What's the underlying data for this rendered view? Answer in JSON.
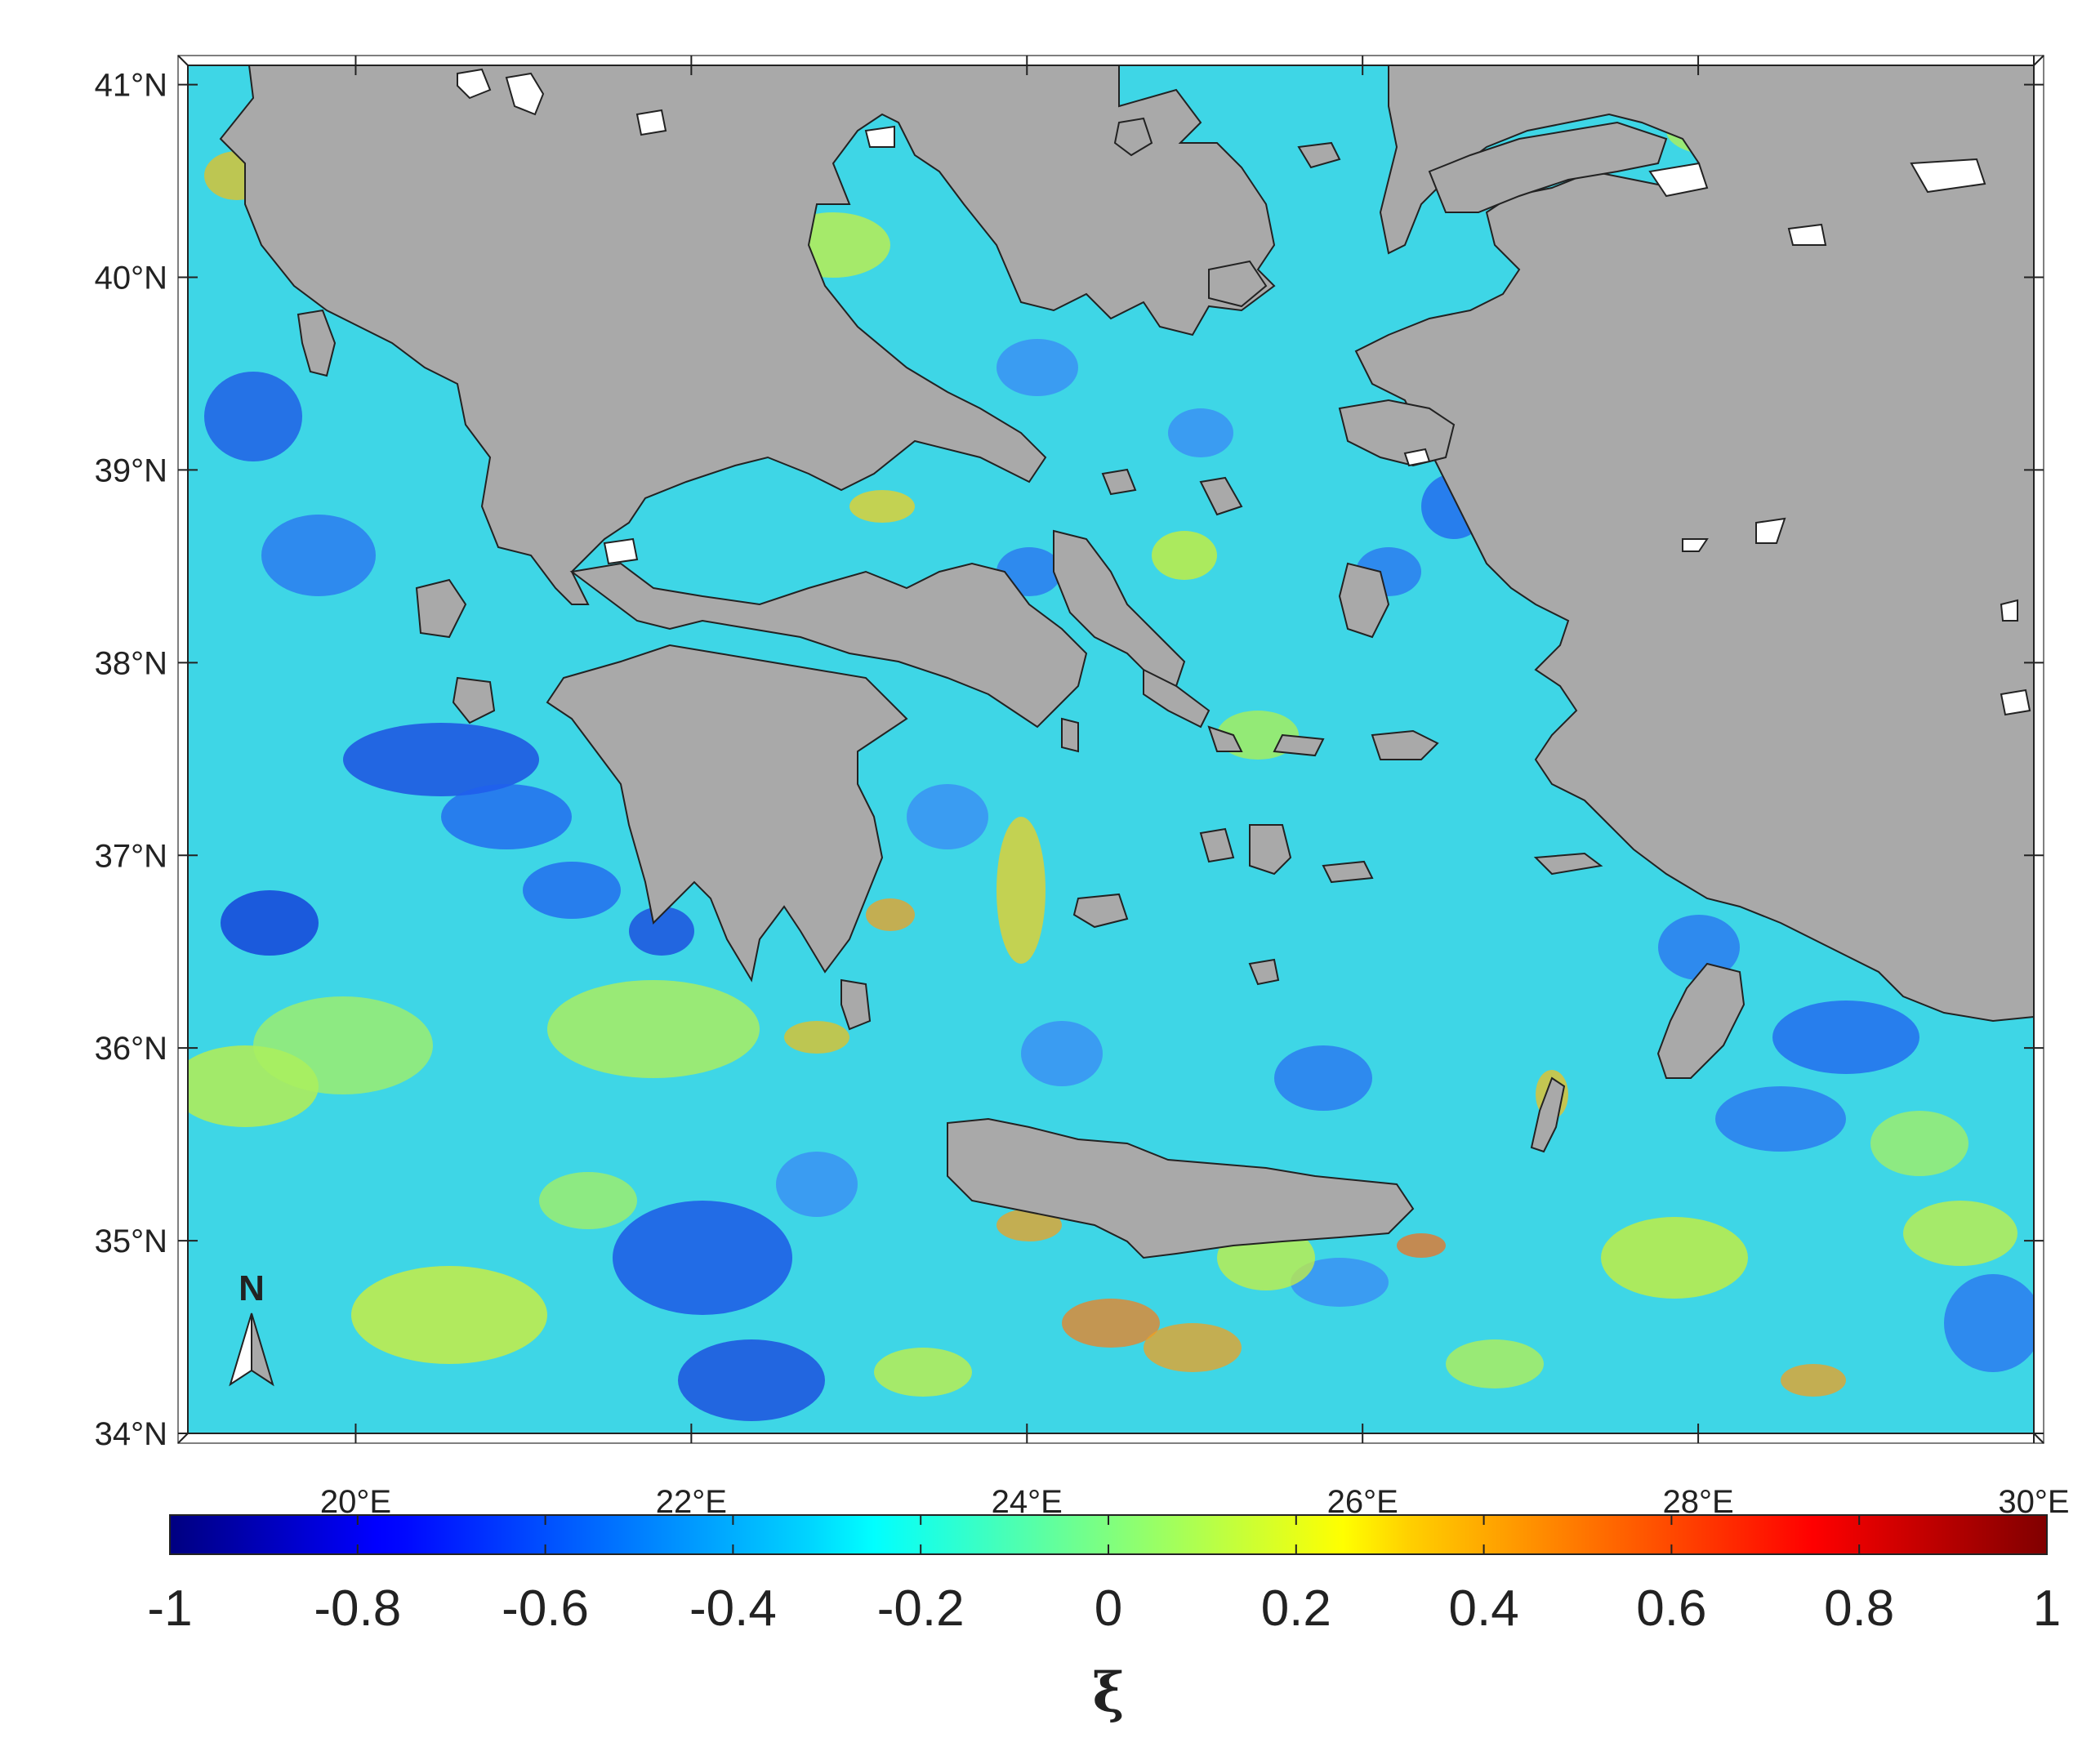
{
  "map": {
    "lat_ticks": [
      "41°N",
      "40°N",
      "39°N",
      "38°N",
      "37°N",
      "36°N",
      "35°N",
      "34°N"
    ],
    "lat_values": [
      41,
      40,
      39,
      38,
      37,
      36,
      35,
      34
    ],
    "lon_ticks": [
      "20°E",
      "22°E",
      "24°E",
      "26°E",
      "28°E",
      "30°E"
    ],
    "lon_values": [
      20,
      22,
      24,
      26,
      28,
      30
    ],
    "extent": {
      "lon": [
        19.0,
        30.0
      ],
      "lat": [
        34.0,
        41.1
      ]
    },
    "land_color": "#a9a9a9",
    "lake_color": "#ffffff",
    "north_arrow": {
      "label": "N",
      "icon": "north-arrow-icon"
    }
  },
  "colorbar": {
    "tick_labels": [
      "-1",
      "-0.8",
      "-0.6",
      "-0.4",
      "-0.2",
      "0",
      "0.2",
      "0.4",
      "0.6",
      "0.8",
      "1"
    ],
    "range": [
      -1,
      1
    ],
    "colormap": "jet",
    "label": "ξ"
  }
}
